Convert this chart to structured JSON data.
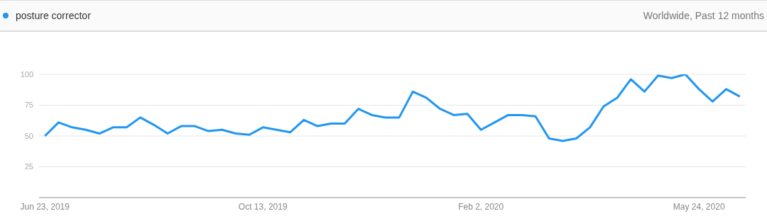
{
  "chart_data": {
    "type": "line",
    "subtitle": "Worldwide, Past 12 months",
    "x": [
      "2019-06-23",
      "2019-06-30",
      "2019-07-07",
      "2019-07-14",
      "2019-07-21",
      "2019-07-28",
      "2019-08-04",
      "2019-08-11",
      "2019-08-18",
      "2019-08-25",
      "2019-09-01",
      "2019-09-08",
      "2019-09-15",
      "2019-09-22",
      "2019-09-29",
      "2019-10-06",
      "2019-10-13",
      "2019-10-20",
      "2019-10-27",
      "2019-11-03",
      "2019-11-10",
      "2019-11-17",
      "2019-11-24",
      "2019-12-01",
      "2019-12-08",
      "2019-12-15",
      "2019-12-22",
      "2019-12-29",
      "2020-01-05",
      "2020-01-12",
      "2020-01-19",
      "2020-01-26",
      "2020-02-02",
      "2020-02-09",
      "2020-02-16",
      "2020-02-23",
      "2020-03-01",
      "2020-03-08",
      "2020-03-15",
      "2020-03-22",
      "2020-03-29",
      "2020-04-05",
      "2020-04-12",
      "2020-04-19",
      "2020-04-26",
      "2020-05-03",
      "2020-05-10",
      "2020-05-17",
      "2020-05-24",
      "2020-05-31",
      "2020-06-07",
      "2020-06-14"
    ],
    "series": [
      {
        "name": "posture corrector",
        "color": "#2196f3",
        "values": [
          50,
          61,
          57,
          55,
          52,
          57,
          57,
          65,
          59,
          52,
          58,
          58,
          54,
          55,
          52,
          51,
          57,
          55,
          53,
          63,
          58,
          60,
          60,
          72,
          67,
          65,
          65,
          86,
          81,
          72,
          67,
          68,
          55,
          61,
          67,
          67,
          66,
          48,
          46,
          48,
          57,
          74,
          81,
          96,
          86,
          99,
          97,
          100,
          88,
          78,
          88,
          82
        ]
      }
    ],
    "xlim": [
      "2019-06-20",
      "2020-06-17"
    ],
    "xticks": [
      {
        "value": "2019-06-23",
        "label": "Jun 23, 2019"
      },
      {
        "value": "2019-10-13",
        "label": "Oct 13, 2019"
      },
      {
        "value": "2020-02-02",
        "label": "Feb 2, 2020"
      },
      {
        "value": "2020-05-24",
        "label": "May 24, 2020"
      }
    ],
    "ylim": [
      0,
      100
    ],
    "yticks": [
      {
        "value": 0,
        "label": null
      },
      25,
      50,
      75,
      100
    ],
    "grid": "y",
    "legend": "top left",
    "marker": "none",
    "line_style": "solid"
  }
}
